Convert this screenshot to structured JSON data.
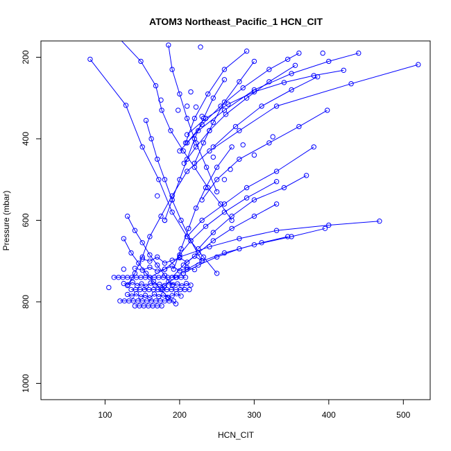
{
  "chart_data": {
    "type": "scatter",
    "title": "ATOM3 Northeast_Pacific_1 HCN_CIT",
    "xlabel": "HCN_CIT",
    "ylabel": "Pressure (mbar)",
    "xlim": [
      14,
      536
    ],
    "ylim": [
      1040,
      160
    ],
    "y_reversed": true,
    "xticks": [
      100,
      200,
      300,
      400,
      500
    ],
    "yticks": [
      200,
      400,
      600,
      800,
      1000
    ],
    "grid": false,
    "legend": "none",
    "series_color": "#0000ff",
    "marker": "open-circle",
    "connected": true,
    "series": [
      {
        "x": [
          112,
          148,
          168,
          176,
          188,
          205,
          220,
          238,
          255,
          270
        ],
        "y": [
          140,
          210,
          270,
          330,
          380,
          430,
          470,
          520,
          560,
          600
        ]
      },
      {
        "x": [
          80,
          128,
          150,
          172,
          190,
          210,
          232,
          250
        ],
        "y": [
          205,
          318,
          420,
          500,
          580,
          640,
          690,
          730
        ]
      },
      {
        "x": [
          520,
          430,
          330,
          280,
          240,
          210,
          190,
          175,
          160,
          150,
          140,
          130
        ],
        "y": [
          218,
          265,
          320,
          380,
          430,
          480,
          540,
          590,
          640,
          690,
          730,
          760
        ]
      },
      {
        "x": [
          468,
          400,
          330,
          280,
          240,
          200,
          180,
          160
        ],
        "y": [
          602,
          612,
          625,
          645,
          665,
          690,
          720,
          740
        ]
      },
      {
        "x": [
          395,
          350,
          300,
          260,
          230,
          210,
          195,
          180
        ],
        "y": [
          620,
          640,
          660,
          680,
          700,
          720,
          740,
          760
        ]
      },
      {
        "x": [
          380,
          330,
          290,
          260,
          230,
          210
        ],
        "y": [
          420,
          480,
          520,
          560,
          600,
          640
        ]
      },
      {
        "x": [
          440,
          400,
          350,
          300,
          260,
          225,
          200
        ],
        "y": [
          190,
          210,
          240,
          280,
          330,
          380,
          430
        ]
      },
      {
        "x": [
          398,
          360,
          320,
          280,
          250,
          230
        ],
        "y": [
          330,
          370,
          410,
          450,
          500,
          550
        ]
      },
      {
        "x": [
          370,
          340,
          300,
          270,
          245,
          225
        ],
        "y": [
          490,
          520,
          550,
          590,
          630,
          670
        ]
      },
      {
        "x": [
          330,
          290,
          260,
          235,
          215,
          200
        ],
        "y": [
          505,
          545,
          580,
          615,
          650,
          685
        ]
      },
      {
        "x": [
          345,
          310,
          280,
          250,
          225,
          205
        ],
        "y": [
          640,
          655,
          670,
          690,
          710,
          730
        ]
      },
      {
        "x": [
          290,
          260,
          238,
          220,
          208
        ],
        "y": [
          185,
          230,
          290,
          350,
          410
        ]
      },
      {
        "x": [
          355,
          320,
          290,
          262,
          240,
          222,
          206
        ],
        "y": [
          220,
          260,
          300,
          340,
          380,
          420,
          460
        ]
      },
      {
        "x": [
          385,
          350,
          310,
          275,
          245
        ],
        "y": [
          248,
          280,
          320,
          370,
          420
        ]
      },
      {
        "x": [
          155,
          162,
          170,
          180,
          190,
          202,
          215,
          230
        ],
        "y": [
          355,
          400,
          450,
          500,
          550,
          600,
          650,
          700
        ]
      },
      {
        "x": [
          185,
          190,
          200,
          210,
          222,
          236,
          250
        ],
        "y": [
          170,
          230,
          290,
          350,
          410,
          470,
          530
        ]
      },
      {
        "x": [
          260,
          245,
          232,
          220,
          210,
          200,
          190,
          180
        ],
        "y": [
          255,
          300,
          350,
          400,
          450,
          500,
          550,
          600
        ]
      },
      {
        "x": [
          300,
          280,
          260,
          245,
          232,
          220
        ],
        "y": [
          210,
          260,
          310,
          360,
          410,
          460
        ]
      },
      {
        "x": [
          130,
          140,
          150,
          160,
          170,
          180,
          190
        ],
        "y": [
          590,
          625,
          655,
          685,
          710,
          735,
          760
        ]
      },
      {
        "x": [
          125,
          135,
          145,
          155,
          165,
          175,
          185,
          195
        ],
        "y": [
          645,
          680,
          705,
          730,
          750,
          770,
          790,
          805
        ]
      },
      {
        "x": [
          330,
          300,
          270,
          245,
          225,
          205,
          190
        ],
        "y": [
          560,
          590,
          620,
          650,
          680,
          710,
          740
        ]
      },
      {
        "x": [
          270,
          250,
          235,
          222,
          212,
          202,
          192
        ],
        "y": [
          420,
          470,
          520,
          570,
          620,
          670,
          720
        ]
      },
      {
        "x": [
          420,
          380,
          340,
          300,
          265,
          235,
          210
        ],
        "y": [
          232,
          245,
          262,
          285,
          315,
          350,
          390
        ]
      },
      {
        "x": [
          360,
          320,
          285,
          255,
          230,
          210
        ],
        "y": [
          190,
          230,
          275,
          320,
          365,
          410
        ]
      }
    ],
    "clusters": [
      {
        "x": [
          112,
          118,
          124,
          130,
          136,
          142,
          148,
          154,
          160,
          166,
          172,
          178,
          184,
          190,
          196,
          202,
          208
        ],
        "y": [
          740,
          740,
          740,
          740,
          740,
          740,
          740,
          740,
          740,
          740,
          740,
          740,
          740,
          740,
          740,
          740,
          740
        ]
      },
      {
        "x": [
          135,
          141,
          147,
          153,
          159,
          165,
          171,
          177,
          183,
          189,
          195,
          201,
          207,
          213
        ],
        "y": [
          770,
          770,
          770,
          770,
          770,
          770,
          770,
          770,
          770,
          770,
          770,
          770,
          770,
          770
        ]
      },
      {
        "x": [
          120,
          126,
          132,
          138,
          144,
          150,
          156,
          162,
          168,
          174,
          180,
          186,
          192
        ],
        "y": [
          798,
          798,
          798,
          798,
          798,
          798,
          798,
          798,
          798,
          798,
          798,
          798,
          798
        ]
      },
      {
        "x": [
          140,
          146,
          152,
          158,
          164,
          170,
          176
        ],
        "y": [
          810,
          810,
          810,
          810,
          810,
          810,
          810
        ]
      },
      {
        "x": [
          125,
          131,
          137,
          143,
          149,
          155,
          161,
          167,
          173,
          179,
          185,
          191,
          197,
          203,
          209,
          215
        ],
        "y": [
          755,
          758,
          752,
          760,
          756,
          762,
          754,
          759,
          757,
          763,
          751,
          758,
          756,
          761,
          755,
          759
        ]
      },
      {
        "x": [
          130,
          136,
          142,
          148,
          154,
          160,
          166,
          172,
          178,
          184,
          190,
          196,
          202
        ],
        "y": [
          782,
          786,
          780,
          788,
          784,
          790,
          781,
          787,
          783,
          789,
          785,
          780,
          786
        ]
      },
      {
        "x": [
          140,
          150,
          160,
          170,
          180,
          190,
          200,
          210,
          220
        ],
        "y": [
          718,
          722,
          715,
          725,
          720,
          712,
          724,
          716,
          721
        ]
      },
      {
        "x": [
          150,
          160,
          170,
          180,
          190,
          200,
          210,
          220,
          230
        ],
        "y": [
          695,
          700,
          690,
          705,
          698,
          692,
          703,
          688,
          699
        ]
      }
    ],
    "points": {
      "x": [
        105,
        125,
        175,
        215,
        222,
        230,
        240,
        268,
        285,
        325,
        345,
        392,
        228,
        198,
        210,
        245,
        170,
        180,
        260,
        300
      ],
      "y": [
        765,
        720,
        305,
        285,
        322,
        345,
        380,
        475,
        415,
        395,
        205,
        190,
        175,
        330,
        320,
        445,
        540,
        600,
        500,
        440
      ]
    }
  }
}
